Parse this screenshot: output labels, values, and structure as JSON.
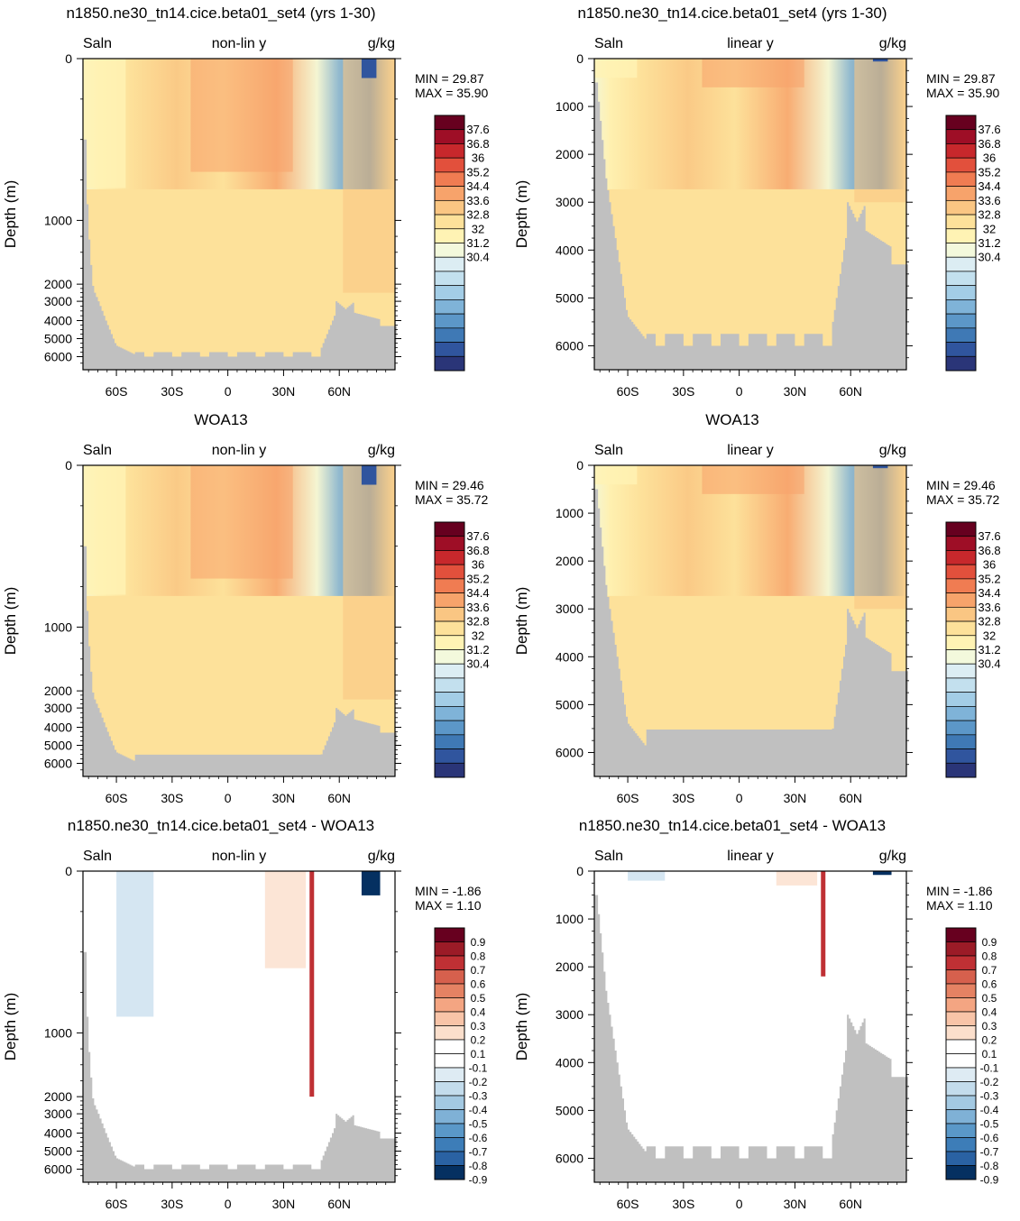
{
  "chart_data": [
    {
      "type": "heatmap",
      "row": 0,
      "col": 0,
      "title": "n1850.ne30_tn14.cice.beta01_set4 (yrs 1-30)",
      "left_label": "Saln",
      "center_label": "non-lin y",
      "right_label": "g/kg",
      "ylabel": "Depth (m)",
      "yscale": "nonlinear",
      "yticks": [
        "0",
        "1000",
        "2000",
        "3000",
        "4000",
        "5000",
        "6000"
      ],
      "xticks": [
        "60S",
        "30S",
        "0",
        "30N",
        "60N"
      ],
      "min_text": "MIN =  29.87",
      "max_text": "MAX =  35.90",
      "colorbar": [
        "37.6",
        "36.8",
        "36",
        "35.2",
        "34.4",
        "33.6",
        "32.8",
        "32",
        "31.2",
        "30.4"
      ],
      "cmap": "abs"
    },
    {
      "type": "heatmap",
      "row": 0,
      "col": 1,
      "title": "n1850.ne30_tn14.cice.beta01_set4 (yrs 1-30)",
      "left_label": "Saln",
      "center_label": "linear y",
      "right_label": "g/kg",
      "ylabel": "Depth (m)",
      "yscale": "linear",
      "yticks": [
        "0",
        "1000",
        "2000",
        "3000",
        "4000",
        "5000",
        "6000"
      ],
      "xticks": [
        "60S",
        "30S",
        "0",
        "30N",
        "60N"
      ],
      "min_text": "MIN =  29.87",
      "max_text": "MAX =  35.90",
      "colorbar": [
        "37.6",
        "36.8",
        "36",
        "35.2",
        "34.4",
        "33.6",
        "32.8",
        "32",
        "31.2",
        "30.4"
      ],
      "cmap": "abs"
    },
    {
      "type": "heatmap",
      "row": 1,
      "col": 0,
      "title": "WOA13",
      "left_label": "Saln",
      "center_label": "non-lin y",
      "right_label": "g/kg",
      "ylabel": "Depth (m)",
      "yscale": "nonlinear",
      "yticks": [
        "0",
        "1000",
        "2000",
        "3000",
        "4000",
        "5000",
        "6000"
      ],
      "xticks": [
        "60S",
        "30S",
        "0",
        "30N",
        "60N"
      ],
      "min_text": "MIN =  29.46",
      "max_text": "MAX =  35.72",
      "colorbar": [
        "37.6",
        "36.8",
        "36",
        "35.2",
        "34.4",
        "33.6",
        "32.8",
        "32",
        "31.2",
        "30.4"
      ],
      "cmap": "abs"
    },
    {
      "type": "heatmap",
      "row": 1,
      "col": 1,
      "title": "WOA13",
      "left_label": "Saln",
      "center_label": "linear y",
      "right_label": "g/kg",
      "ylabel": "Depth (m)",
      "yscale": "linear",
      "yticks": [
        "0",
        "1000",
        "2000",
        "3000",
        "4000",
        "5000",
        "6000"
      ],
      "xticks": [
        "60S",
        "30S",
        "0",
        "30N",
        "60N"
      ],
      "min_text": "MIN =  29.46",
      "max_text": "MAX =  35.72",
      "colorbar": [
        "37.6",
        "36.8",
        "36",
        "35.2",
        "34.4",
        "33.6",
        "32.8",
        "32",
        "31.2",
        "30.4"
      ],
      "cmap": "abs"
    },
    {
      "type": "heatmap",
      "row": 2,
      "col": 0,
      "title": "n1850.ne30_tn14.cice.beta01_set4 - WOA13",
      "left_label": "Saln",
      "center_label": "non-lin y",
      "right_label": "g/kg",
      "ylabel": "Depth (m)",
      "yscale": "nonlinear",
      "yticks": [
        "0",
        "1000",
        "2000",
        "3000",
        "4000",
        "5000",
        "6000"
      ],
      "xticks": [
        "60S",
        "30S",
        "0",
        "30N",
        "60N"
      ],
      "min_text": "MIN =  -1.86",
      "max_text": "MAX =   1.10",
      "colorbar": [
        "0.9",
        "0.8",
        "0.7",
        "0.6",
        "0.5",
        "0.4",
        "0.3",
        "0.2",
        "0.1",
        "-0.1",
        "-0.2",
        "-0.3",
        "-0.4",
        "-0.5",
        "-0.6",
        "-0.7",
        "-0.8",
        "-0.9"
      ],
      "cmap": "diff"
    },
    {
      "type": "heatmap",
      "row": 2,
      "col": 1,
      "title": "n1850.ne30_tn14.cice.beta01_set4 - WOA13",
      "left_label": "Saln",
      "center_label": "linear y",
      "right_label": "g/kg",
      "ylabel": "Depth (m)",
      "yscale": "linear",
      "yticks": [
        "0",
        "1000",
        "2000",
        "3000",
        "4000",
        "5000",
        "6000"
      ],
      "xticks": [
        "60S",
        "30S",
        "0",
        "30N",
        "60N"
      ],
      "min_text": "MIN =  -1.86",
      "max_text": "MAX =   1.10",
      "colorbar": [
        "0.9",
        "0.8",
        "0.7",
        "0.6",
        "0.5",
        "0.4",
        "0.3",
        "0.2",
        "0.1",
        "-0.1",
        "-0.2",
        "-0.3",
        "-0.4",
        "-0.5",
        "-0.6",
        "-0.7",
        "-0.8",
        "-0.9"
      ],
      "cmap": "diff"
    }
  ],
  "colors": {
    "land": "#c0c0c0",
    "abs_scale": [
      "#67001f",
      "#9e0e26",
      "#c7282c",
      "#e2503c",
      "#f07c52",
      "#f7a36b",
      "#fac683",
      "#fde19a",
      "#fff3b4",
      "#f3f9dc",
      "#dcedf3",
      "#c3e0ee",
      "#a3cde6",
      "#7fb3d8",
      "#5c97c8",
      "#3f79b5",
      "#30559e",
      "#2a3578"
    ],
    "diff_scale": [
      "#67001f",
      "#9b1b27",
      "#bf3034",
      "#d6604d",
      "#e58263",
      "#f4a582",
      "#f8c4a8",
      "#fbdfcc",
      "#ffffff",
      "#ffffff",
      "#deebf3",
      "#c3dcec",
      "#a3c9e2",
      "#7fb1d6",
      "#5a98c8",
      "#3d7db8",
      "#2a62a3",
      "#053061"
    ]
  }
}
